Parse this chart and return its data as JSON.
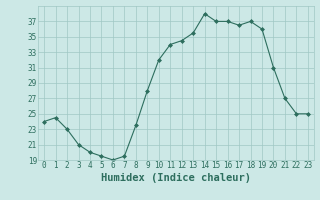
{
  "x": [
    0,
    1,
    2,
    3,
    4,
    5,
    6,
    7,
    8,
    9,
    10,
    11,
    12,
    13,
    14,
    15,
    16,
    17,
    18,
    19,
    20,
    21,
    22,
    23
  ],
  "y": [
    24.0,
    24.5,
    23.0,
    21.0,
    20.0,
    19.5,
    19.0,
    19.5,
    23.5,
    28.0,
    32.0,
    34.0,
    34.5,
    35.5,
    38.0,
    37.0,
    37.0,
    36.5,
    37.0,
    36.0,
    31.0,
    27.0,
    25.0,
    25.0
  ],
  "xlabel": "Humidex (Indice chaleur)",
  "ylim": [
    19,
    39
  ],
  "xlim_min": -0.5,
  "xlim_max": 23.5,
  "yticks": [
    19,
    21,
    23,
    25,
    27,
    29,
    31,
    33,
    35,
    37
  ],
  "xticks": [
    0,
    1,
    2,
    3,
    4,
    5,
    6,
    7,
    8,
    9,
    10,
    11,
    12,
    13,
    14,
    15,
    16,
    17,
    18,
    19,
    20,
    21,
    22,
    23
  ],
  "xtick_labels": [
    "0",
    "1",
    "2",
    "3",
    "4",
    "5",
    "6",
    "7",
    "8",
    "9",
    "10",
    "11",
    "12",
    "13",
    "14",
    "15",
    "16",
    "17",
    "18",
    "19",
    "20",
    "21",
    "22",
    "23"
  ],
  "line_color": "#2d6e5e",
  "marker": "D",
  "marker_size": 2.0,
  "bg_color": "#cce8e6",
  "grid_color": "#a0c8c4",
  "font_color": "#2d6e5e",
  "xlabel_fontsize": 7.5,
  "tick_fontsize": 5.5
}
